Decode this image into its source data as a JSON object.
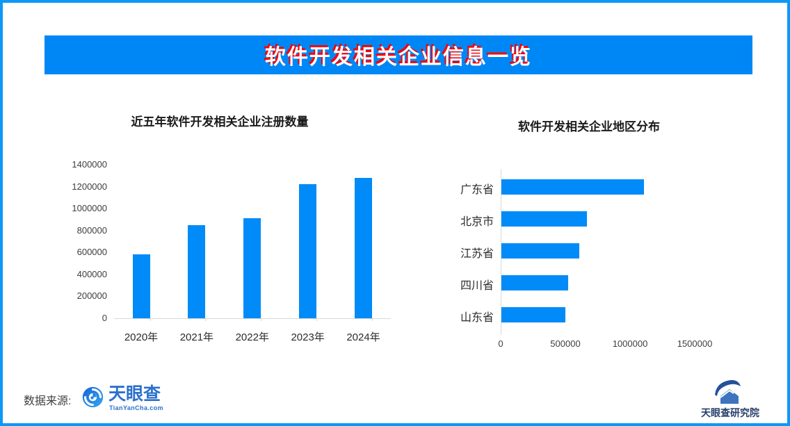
{
  "banner": {
    "title": "软件开发相关企业信息一览",
    "bg_color": "#0087f6",
    "text_color": "#ffffff",
    "shadow_color": "#f80000"
  },
  "colors": {
    "bar_blue": "#008bf8",
    "border_blue": "#0d97f6",
    "axis_gray": "#d9d9d9"
  },
  "chart_data": [
    {
      "type": "bar",
      "orientation": "vertical",
      "title": "近五年软件开发相关企业注册数量",
      "categories": [
        "2020年",
        "2021年",
        "2022年",
        "2023年",
        "2024年"
      ],
      "values": [
        580000,
        850000,
        910000,
        1220000,
        1280000
      ],
      "ylim": [
        0,
        1400000
      ],
      "y_ticks": [
        0,
        200000,
        400000,
        600000,
        800000,
        1000000,
        1200000,
        1400000
      ],
      "grid": false,
      "legend": "none"
    },
    {
      "type": "bar",
      "orientation": "horizontal",
      "title": "软件开发相关企业地区分布",
      "categories": [
        "广东省",
        "北京市",
        "江苏省",
        "四川省",
        "山东省"
      ],
      "values": [
        1100000,
        660000,
        600000,
        515000,
        495000
      ],
      "xlim": [
        0,
        1500000
      ],
      "x_ticks": [
        0,
        500000,
        1000000,
        1500000
      ],
      "grid": false,
      "legend": "none"
    }
  ],
  "footer": {
    "source_label": "数据来源:",
    "tianyancha": {
      "name": "天眼查",
      "subtext": "TianYanCha.com"
    },
    "research": {
      "name": "天眼查研究院"
    }
  }
}
